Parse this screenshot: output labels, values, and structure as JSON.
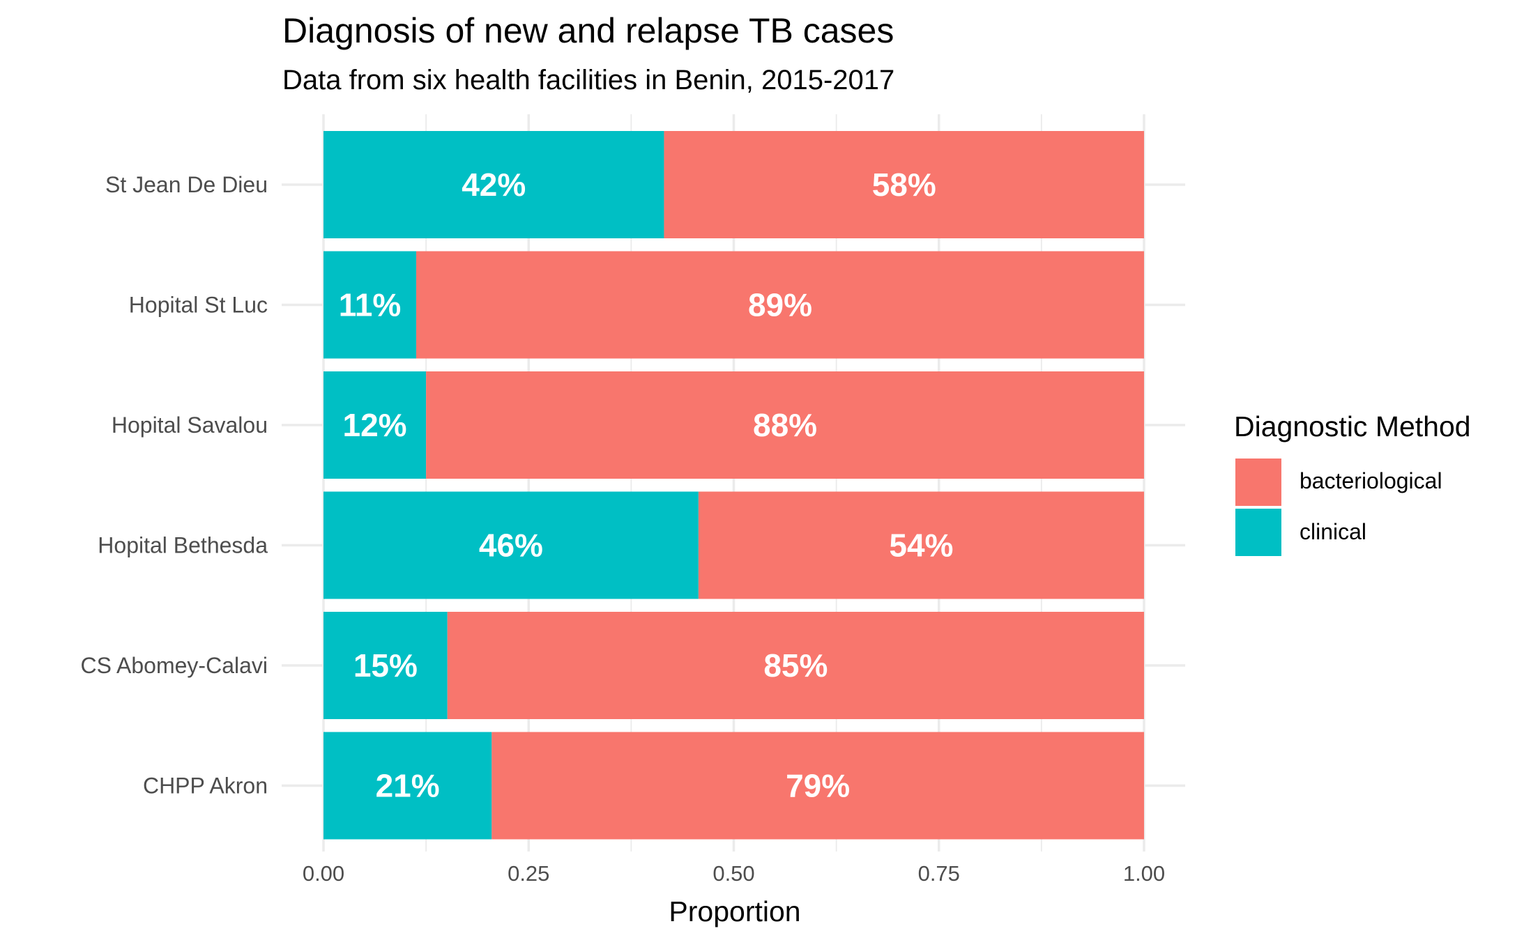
{
  "chart_data": {
    "type": "bar",
    "orientation": "horizontal",
    "stacked": true,
    "title": "Diagnosis of new and relapse TB cases",
    "subtitle": "Data from six health facilities in Benin, 2015-2017",
    "xlabel": "Proportion",
    "ylabel": "",
    "xlim": [
      0,
      1
    ],
    "x_ticks": [
      "0.00",
      "0.25",
      "0.50",
      "0.75",
      "1.00"
    ],
    "x_tick_values": [
      0,
      0.25,
      0.5,
      0.75,
      1.0
    ],
    "grid": true,
    "categories": [
      "St Jean De Dieu",
      "Hopital St Luc",
      "Hopital Savalou",
      "Hopital Bethesda",
      "CS Abomey-Calavi",
      "CHPP Akron"
    ],
    "series": [
      {
        "name": "clinical",
        "color": "#00BFC4",
        "values": [
          0.415,
          0.113,
          0.125,
          0.457,
          0.151,
          0.205
        ],
        "labels": [
          "42%",
          "11%",
          "12%",
          "46%",
          "15%",
          "21%"
        ]
      },
      {
        "name": "bacteriological",
        "color": "#F8766D",
        "values": [
          0.585,
          0.887,
          0.875,
          0.543,
          0.849,
          0.795
        ],
        "labels": [
          "58%",
          "89%",
          "88%",
          "54%",
          "85%",
          "79%"
        ]
      }
    ],
    "legend": {
      "title": "Diagnostic Method",
      "position": "right",
      "entries": [
        {
          "label": "bacteriological",
          "color": "#F8766D"
        },
        {
          "label": "clinical",
          "color": "#00BFC4"
        }
      ]
    }
  }
}
